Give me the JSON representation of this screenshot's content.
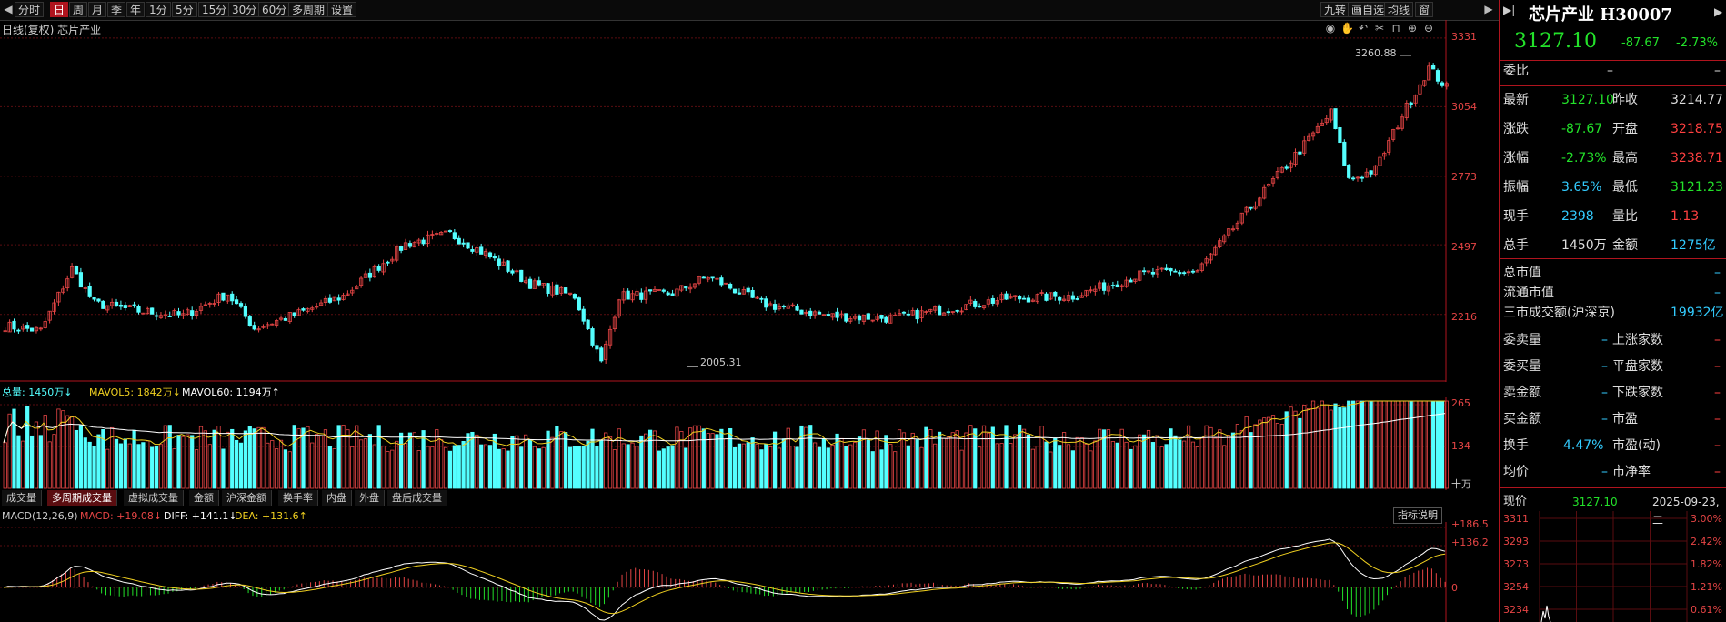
{
  "toolbar": {
    "periods": [
      "分时",
      "日",
      "周",
      "月",
      "季",
      "年",
      "1分",
      "5分",
      "15分",
      "30分",
      "60分",
      "多周期",
      "设置"
    ],
    "active_period": "日",
    "right_items": [
      "九转",
      "画自选",
      "均线",
      "窗"
    ]
  },
  "chart": {
    "title": "日线(复权)  芯片产业",
    "price_axis": [
      "3331",
      "3054",
      "2773",
      "2497",
      "2216"
    ],
    "high_label": "3260.88",
    "low_label": "2005.31"
  },
  "volume": {
    "label_total": "总量: 1450万↓",
    "label_mavol5": "MAVOL5: 1842万↓",
    "label_mavol60": "MAVOL60: 1194万↑",
    "axis": [
      "265",
      "134",
      "十万"
    ]
  },
  "tabs": [
    "成交量",
    "多周期成交量",
    "虚拟成交量",
    "金额",
    "沪深金额",
    "换手率",
    "内盘",
    "外盘",
    "盘后成交量"
  ],
  "active_tab": "多周期成交量",
  "macd": {
    "label_name": "MACD(12,26,9)",
    "label_macd": "MACD: +19.08↓",
    "label_diff": "DIFF: +141.1↓",
    "label_dea": "DEA: +131.6↑",
    "axis": [
      "+186.5",
      "+136.2",
      "0"
    ],
    "help_button": "指标说明"
  },
  "quote": {
    "name": "芯片产业 H30007",
    "price": "3127.10",
    "change": "-87.67",
    "change_pct": "-2.73%",
    "weibi_label": "委比",
    "weibi_value": "–",
    "rows": [
      {
        "l1": "最新",
        "v1": "3127.10",
        "c1": "g",
        "l2": "昨收",
        "v2": "3214.77",
        "c2": "w"
      },
      {
        "l1": "涨跌",
        "v1": "-87.67",
        "c1": "g",
        "l2": "开盘",
        "v2": "3218.75",
        "c2": "r"
      },
      {
        "l1": "涨幅",
        "v1": "-2.73%",
        "c1": "g",
        "l2": "最高",
        "v2": "3238.71",
        "c2": "r"
      },
      {
        "l1": "振幅",
        "v1": "3.65%",
        "c1": "c",
        "l2": "最低",
        "v2": "3121.23",
        "c2": "g"
      },
      {
        "l1": "现手",
        "v1": "2398",
        "c1": "c",
        "l2": "量比",
        "v2": "1.13",
        "c2": "r"
      },
      {
        "l1": "总手",
        "v1": "1450万",
        "c1": "w",
        "l2": "金额",
        "v2": "1275亿",
        "c2": "c"
      }
    ],
    "market_value": "总市值",
    "float_value": "流通市值",
    "three_market_label": "三市成交额(沪深京)",
    "three_market_value": "19932亿",
    "flow_rows": [
      {
        "l1": "委卖量",
        "v1": "–",
        "l2": "上涨家数",
        "v2": "–"
      },
      {
        "l1": "委买量",
        "v1": "–",
        "l2": "平盘家数",
        "v2": "–"
      },
      {
        "l1": "卖金额",
        "v1": "–",
        "l2": "下跌家数",
        "v2": "–"
      },
      {
        "l1": "买金额",
        "v1": "–",
        "l2": "市盈",
        "v2": "–"
      },
      {
        "l1": "换手",
        "v1": "4.47%",
        "l2": "市盈(动)",
        "v2": "–"
      },
      {
        "l1": "均价",
        "v1": "–",
        "l2": "市净率",
        "v2": "–"
      }
    ],
    "mini_label": "现价",
    "mini_price": "3127.10",
    "mini_date": "2025-09-23,二",
    "mini_left_axis": [
      "3311",
      "3293",
      "3273",
      "3254",
      "3234"
    ],
    "mini_right_axis": [
      "3.00%",
      "2.42%",
      "1.82%",
      "1.21%",
      "0.61%"
    ]
  },
  "colors": {
    "up": "#e64545",
    "down": "#54ffff",
    "accent": "#b0141e",
    "ma_white": "#ffffff",
    "ma_yellow": "#f0d020"
  }
}
